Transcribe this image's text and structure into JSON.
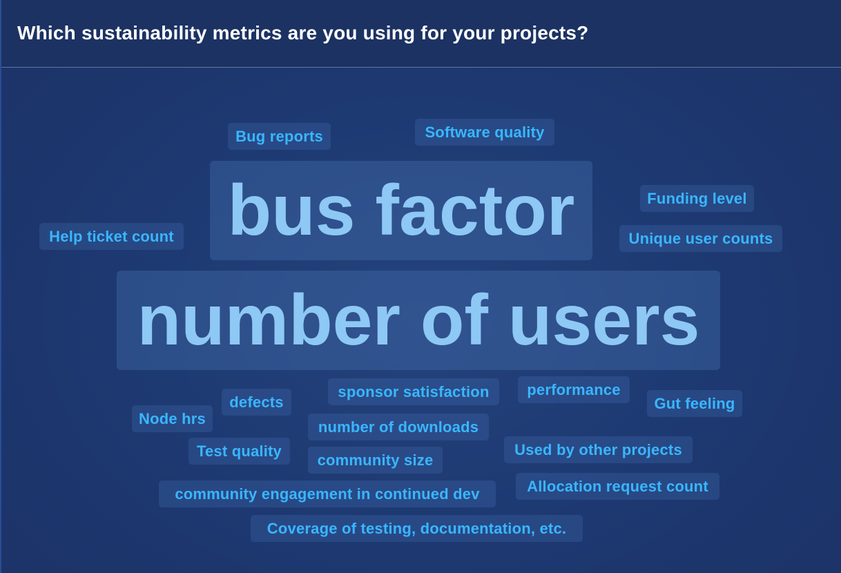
{
  "header": {
    "question": "Which sustainability metrics are you using for your projects?"
  },
  "words": {
    "bug_reports": "Bug reports",
    "software_quality": "Software quality",
    "bus_factor": "bus factor",
    "funding_level": "Funding level",
    "help_ticket_count": "Help ticket count",
    "unique_user_counts": "Unique user counts",
    "number_of_users": "number of users",
    "sponsor_satisfaction": "sponsor satisfaction",
    "performance": "performance",
    "defects": "defects",
    "gut_feeling": "Gut feeling",
    "node_hrs": "Node hrs",
    "number_of_downloads": "number of downloads",
    "test_quality": "Test quality",
    "used_by_other_projects": "Used by other projects",
    "community_size": "community size",
    "allocation_request_count": "Allocation request count",
    "community_engagement": "community engagement in continued dev",
    "coverage": "Coverage of testing, documentation, etc."
  },
  "colors": {
    "background": "#1e3a73",
    "header_background": "#1c3262",
    "small_word": "#39b6ff",
    "large_word": "#8ec8f5",
    "question_text": "#ffffff"
  }
}
